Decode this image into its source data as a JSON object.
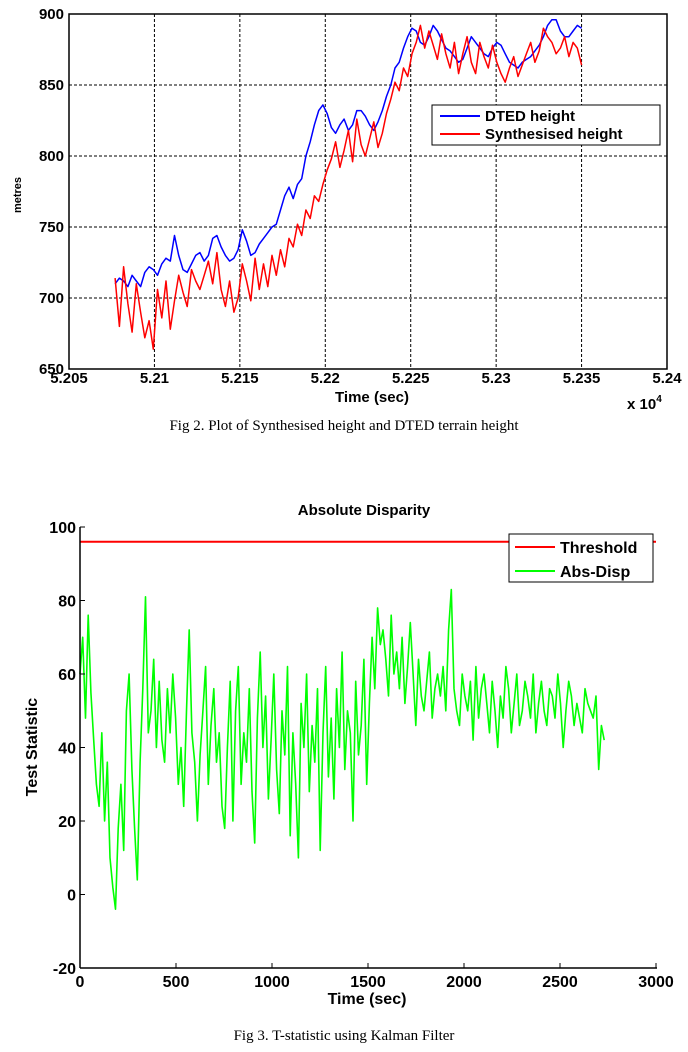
{
  "chart_data": [
    {
      "type": "line",
      "title": "",
      "caption": "Fig 2. Plot of Synthesised height and DTED terrain height",
      "xlabel": "Time (sec)",
      "ylabel": "metres",
      "x_multiplier_label": "x 10",
      "x_multiplier_exponent": "4",
      "xlim": [
        5.205,
        5.24
      ],
      "ylim": [
        650,
        900
      ],
      "xticks": [
        "5.205",
        "5.21",
        "5.215",
        "5.22",
        "5.225",
        "5.23",
        "5.235",
        "5.24"
      ],
      "xtick_values": [
        5.205,
        5.21,
        5.215,
        5.22,
        5.225,
        5.23,
        5.235,
        5.24
      ],
      "yticks": [
        "650",
        "700",
        "750",
        "800",
        "850",
        "900"
      ],
      "ytick_values": [
        650,
        700,
        750,
        800,
        850,
        900
      ],
      "grid": true,
      "legend_position": "right",
      "series": [
        {
          "name": "DTED height",
          "color": "#0000ff",
          "x_start": 5.2077,
          "x_end": 5.235,
          "values": [
            710,
            714,
            712,
            708,
            716,
            712,
            708,
            718,
            722,
            720,
            716,
            724,
            728,
            726,
            744,
            730,
            720,
            718,
            724,
            730,
            732,
            726,
            730,
            742,
            744,
            736,
            730,
            726,
            728,
            734,
            748,
            740,
            730,
            732,
            738,
            742,
            746,
            750,
            752,
            762,
            772,
            778,
            770,
            780,
            784,
            800,
            810,
            822,
            832,
            836,
            830,
            820,
            816,
            822,
            826,
            818,
            822,
            832,
            832,
            828,
            822,
            818,
            824,
            832,
            842,
            850,
            862,
            866,
            876,
            884,
            890,
            888,
            880,
            878,
            884,
            892,
            888,
            882,
            876,
            874,
            870,
            866,
            868,
            876,
            884,
            880,
            876,
            872,
            870,
            876,
            880,
            878,
            872,
            866,
            864,
            862,
            866,
            868,
            870,
            874,
            878,
            884,
            892,
            896,
            896,
            888,
            884,
            884,
            888,
            892,
            890
          ]
        },
        {
          "name": "Synthesised height",
          "color": "#ff0000",
          "x_start": 5.2077,
          "x_end": 5.235,
          "values": [
            714,
            680,
            722,
            696,
            676,
            710,
            690,
            672,
            684,
            664,
            706,
            686,
            712,
            678,
            698,
            716,
            704,
            694,
            720,
            712,
            706,
            716,
            726,
            710,
            732,
            706,
            694,
            712,
            690,
            700,
            724,
            712,
            698,
            728,
            706,
            724,
            708,
            730,
            716,
            734,
            722,
            742,
            736,
            752,
            744,
            762,
            756,
            772,
            768,
            780,
            790,
            798,
            810,
            792,
            804,
            818,
            796,
            826,
            808,
            800,
            812,
            824,
            806,
            816,
            830,
            840,
            852,
            846,
            862,
            856,
            872,
            880,
            892,
            876,
            888,
            878,
            868,
            886,
            872,
            862,
            880,
            858,
            872,
            884,
            866,
            858,
            880,
            870,
            862,
            878,
            866,
            858,
            852,
            862,
            870,
            856,
            864,
            872,
            880,
            866,
            874,
            890,
            884,
            880,
            872,
            876,
            884,
            870,
            880,
            876,
            864
          ]
        }
      ]
    },
    {
      "type": "line",
      "title": "Absolute Disparity",
      "caption": "Fig 3. T-statistic using Kalman Filter",
      "xlabel": "Time (sec)",
      "ylabel": "Test Statistic",
      "xlim": [
        0,
        3000
      ],
      "ylim": [
        -20,
        100
      ],
      "xticks": [
        "0",
        "500",
        "1000",
        "1500",
        "2000",
        "2500",
        "3000"
      ],
      "xtick_values": [
        0,
        500,
        1000,
        1500,
        2000,
        2500,
        3000
      ],
      "yticks": [
        "-20",
        "0",
        "20",
        "40",
        "60",
        "80",
        "100"
      ],
      "ytick_values": [
        -20,
        0,
        20,
        40,
        60,
        80,
        100
      ],
      "grid": false,
      "legend_position": "top-right",
      "series": [
        {
          "name": "Threshold",
          "color": "#ff0000",
          "x_start": 0,
          "x_end": 3000,
          "values": [
            96,
            96
          ]
        },
        {
          "name": "Abs-Disp",
          "color": "#00ff00",
          "x_start": 0,
          "x_end": 2730,
          "values": [
            60,
            70,
            48,
            76,
            55,
            42,
            30,
            24,
            44,
            20,
            36,
            10,
            2,
            -4,
            18,
            30,
            12,
            50,
            60,
            34,
            18,
            4,
            36,
            56,
            81,
            44,
            50,
            64,
            40,
            58,
            42,
            36,
            56,
            44,
            60,
            48,
            30,
            40,
            24,
            50,
            72,
            44,
            36,
            20,
            38,
            50,
            62,
            30,
            46,
            56,
            36,
            44,
            24,
            18,
            40,
            58,
            20,
            50,
            62,
            30,
            44,
            36,
            56,
            28,
            14,
            48,
            66,
            40,
            54,
            26,
            42,
            60,
            34,
            22,
            50,
            38,
            62,
            16,
            44,
            30,
            10,
            52,
            40,
            60,
            28,
            46,
            36,
            56,
            12,
            44,
            62,
            32,
            48,
            26,
            56,
            40,
            66,
            34,
            50,
            44,
            20,
            58,
            38,
            46,
            64,
            30,
            52,
            70,
            56,
            78,
            68,
            72,
            64,
            54,
            76,
            60,
            66,
            56,
            70,
            52,
            62,
            74,
            60,
            46,
            64,
            54,
            50,
            58,
            66,
            48,
            56,
            60,
            54,
            62,
            50,
            72,
            83,
            56,
            50,
            46,
            60,
            54,
            50,
            58,
            42,
            62,
            48,
            56,
            60,
            52,
            44,
            58,
            50,
            40,
            54,
            48,
            62,
            56,
            44,
            52,
            60,
            46,
            50,
            58,
            54,
            48,
            60,
            44,
            52,
            58,
            50,
            46,
            56,
            54,
            48,
            60,
            52,
            40,
            50,
            58,
            54,
            46,
            52,
            48,
            44,
            56,
            52,
            50,
            48,
            54,
            34,
            46,
            42
          ]
        }
      ]
    }
  ]
}
